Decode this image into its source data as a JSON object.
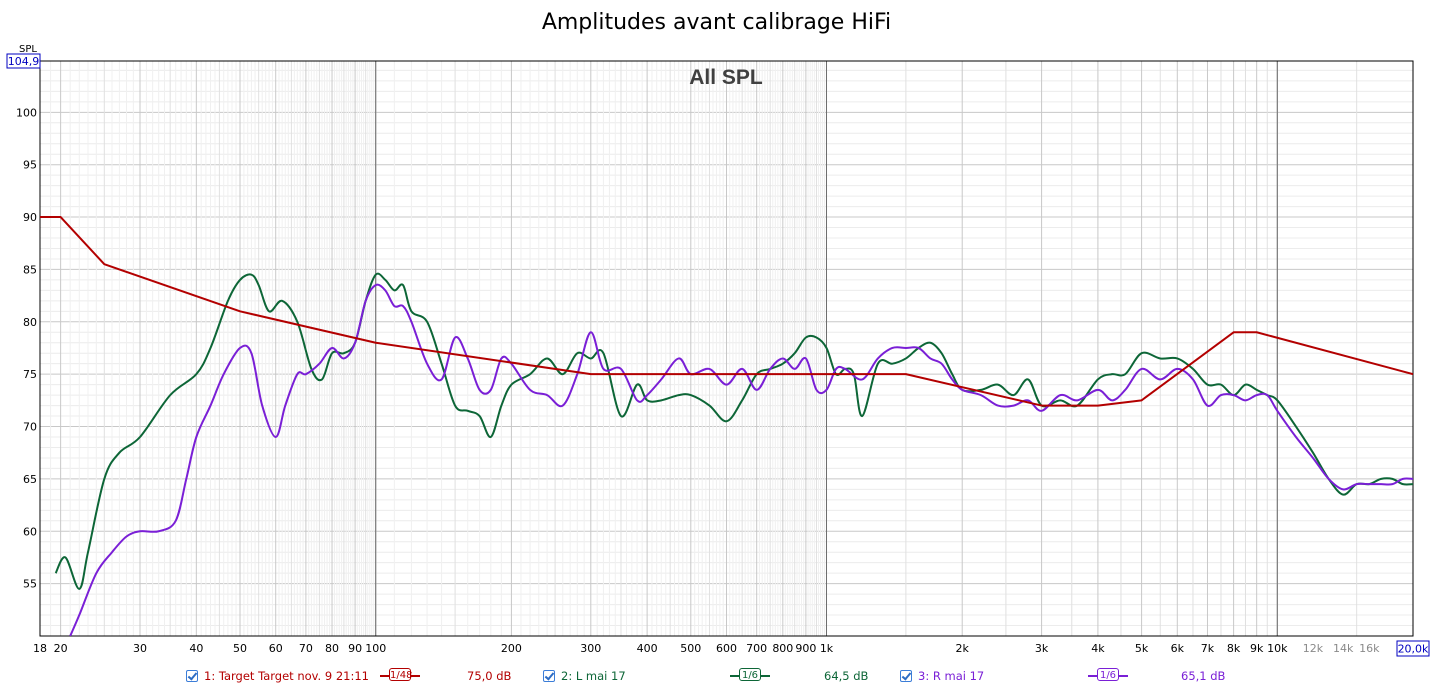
{
  "title": "Amplitudes avant calibrage HiFi",
  "chart_data": {
    "type": "line",
    "title": "Amplitudes avant calibrage HiFi",
    "inner_title": "All SPL",
    "ylabel": "SPL",
    "ylim": [
      50,
      104.9
    ],
    "xlim": [
      18,
      20000
    ],
    "x_scale": "log",
    "y_top_label": "104,9",
    "x_right_label": "20,0k",
    "y_ticks": [
      {
        "value": 55,
        "label": "55"
      },
      {
        "value": 60,
        "label": "60"
      },
      {
        "value": 65,
        "label": "65"
      },
      {
        "value": 70,
        "label": "70"
      },
      {
        "value": 75,
        "label": "75"
      },
      {
        "value": 80,
        "label": "80"
      },
      {
        "value": 85,
        "label": "85"
      },
      {
        "value": 90,
        "label": "90"
      },
      {
        "value": 95,
        "label": "95"
      },
      {
        "value": 100,
        "label": "100"
      }
    ],
    "x_ticks": [
      {
        "value": 18,
        "label": "18",
        "minor": false
      },
      {
        "value": 20,
        "label": "20",
        "minor": false
      },
      {
        "value": 30,
        "label": "30",
        "minor": false
      },
      {
        "value": 40,
        "label": "40",
        "minor": false
      },
      {
        "value": 50,
        "label": "50",
        "minor": false
      },
      {
        "value": 60,
        "label": "60",
        "minor": false
      },
      {
        "value": 70,
        "label": "70",
        "minor": false
      },
      {
        "value": 80,
        "label": "80",
        "minor": false
      },
      {
        "value": 90,
        "label": "90",
        "minor": false
      },
      {
        "value": 100,
        "label": "100",
        "minor": false
      },
      {
        "value": 200,
        "label": "200",
        "minor": false
      },
      {
        "value": 300,
        "label": "300",
        "minor": false
      },
      {
        "value": 400,
        "label": "400",
        "minor": false
      },
      {
        "value": 500,
        "label": "500",
        "minor": false
      },
      {
        "value": 600,
        "label": "600",
        "minor": false
      },
      {
        "value": 700,
        "label": "700",
        "minor": false
      },
      {
        "value": 800,
        "label": "800",
        "minor": false
      },
      {
        "value": 900,
        "label": "900",
        "minor": false
      },
      {
        "value": 1000,
        "label": "1k",
        "minor": false
      },
      {
        "value": 2000,
        "label": "2k",
        "minor": false
      },
      {
        "value": 3000,
        "label": "3k",
        "minor": false
      },
      {
        "value": 4000,
        "label": "4k",
        "minor": false
      },
      {
        "value": 5000,
        "label": "5k",
        "minor": false
      },
      {
        "value": 6000,
        "label": "6k",
        "minor": false
      },
      {
        "value": 7000,
        "label": "7k",
        "minor": false
      },
      {
        "value": 8000,
        "label": "8k",
        "minor": false
      },
      {
        "value": 9000,
        "label": "9k",
        "minor": false
      },
      {
        "value": 10000,
        "label": "10k",
        "minor": false
      },
      {
        "value": 12000,
        "label": "12k",
        "minor": true
      },
      {
        "value": 14000,
        "label": "14k",
        "minor": true
      },
      {
        "value": 16000,
        "label": "16k",
        "minor": true
      }
    ],
    "grid": true,
    "legend_position": "bottom",
    "series": [
      {
        "name": "1: Target Target nov. 9 21:11",
        "smoothing": "1/48",
        "level": "75,0 dB",
        "color": "#b30000",
        "x": [
          18,
          20,
          25,
          50,
          100,
          300,
          1500,
          3000,
          4000,
          5000,
          8000,
          9000,
          20000
        ],
        "y": [
          90,
          90,
          85.5,
          81,
          78,
          75,
          75,
          72,
          72,
          72.5,
          79,
          79,
          75
        ]
      },
      {
        "name": "2: L mai 17",
        "smoothing": "1/6",
        "level": "64,5 dB",
        "color": "#0d6637",
        "x": [
          19.5,
          20.5,
          22,
          23,
          25,
          27,
          30,
          35,
          40,
          43,
          47,
          50,
          53,
          55,
          58,
          62,
          67,
          72,
          76,
          80,
          85,
          90,
          95,
          100,
          105,
          110,
          115,
          120,
          130,
          140,
          150,
          160,
          170,
          180,
          190,
          200,
          220,
          240,
          260,
          280,
          300,
          320,
          350,
          380,
          400,
          430,
          470,
          500,
          550,
          600,
          650,
          700,
          750,
          800,
          850,
          900,
          950,
          1000,
          1050,
          1100,
          1150,
          1200,
          1300,
          1400,
          1500,
          1600,
          1700,
          1800,
          1900,
          2000,
          2200,
          2400,
          2600,
          2800,
          3000,
          3300,
          3600,
          4000,
          4300,
          4600,
          5000,
          5500,
          6000,
          6500,
          7000,
          7500,
          8000,
          8500,
          9000,
          9500,
          10000,
          11000,
          12000,
          13000,
          14000,
          15000,
          16000,
          17000,
          18000,
          19000,
          20000
        ],
        "y": [
          56,
          57.5,
          54.5,
          58,
          65,
          67.5,
          69,
          73,
          75,
          77.5,
          82,
          84,
          84.5,
          83.5,
          81,
          82,
          80,
          75.5,
          74.5,
          77,
          77,
          78,
          82,
          84.5,
          84,
          83,
          83.5,
          81,
          80,
          76,
          72,
          71.5,
          71,
          69,
          72,
          74,
          75,
          76.5,
          75,
          77,
          76.5,
          77,
          71,
          74,
          72.5,
          72.5,
          73,
          73,
          72,
          70.5,
          72.5,
          75,
          75.5,
          76,
          77,
          78.5,
          78.5,
          77.5,
          75,
          75.5,
          75,
          71,
          76,
          76,
          76.5,
          77.5,
          78,
          77,
          75,
          73.5,
          73.5,
          74,
          73,
          74.5,
          72,
          72.5,
          72,
          74.5,
          75,
          75,
          77,
          76.5,
          76.5,
          75.5,
          74,
          74,
          73,
          74,
          73.5,
          73,
          72.5,
          70,
          67.5,
          65,
          63.5,
          64.5,
          64.5,
          65,
          65,
          64.5,
          64.5
        ]
      },
      {
        "name": "3: R mai 17",
        "smoothing": "1/6",
        "level": "65,1 dB",
        "color": "#7a1fd6",
        "x": [
          21,
          22,
          24,
          26,
          28,
          30,
          33,
          36,
          38,
          40,
          43,
          46,
          50,
          53,
          56,
          60,
          63,
          67,
          70,
          75,
          80,
          85,
          90,
          95,
          100,
          105,
          110,
          115,
          120,
          130,
          140,
          150,
          160,
          170,
          180,
          190,
          200,
          220,
          240,
          260,
          280,
          300,
          320,
          350,
          380,
          400,
          430,
          470,
          500,
          550,
          600,
          650,
          700,
          750,
          800,
          850,
          900,
          950,
          1000,
          1050,
          1100,
          1200,
          1300,
          1400,
          1500,
          1600,
          1700,
          1800,
          1900,
          2000,
          2200,
          2400,
          2600,
          2800,
          3000,
          3300,
          3600,
          4000,
          4300,
          4600,
          5000,
          5500,
          6000,
          6500,
          7000,
          7500,
          8000,
          8500,
          9000,
          9500,
          10000,
          11000,
          12000,
          13000,
          14000,
          15000,
          16000,
          17000,
          18000,
          19000,
          20000
        ],
        "y": [
          50,
          52,
          56,
          58,
          59.5,
          60,
          60,
          61,
          65,
          69,
          72,
          75,
          77.5,
          77,
          72,
          69,
          72,
          75,
          75,
          76,
          77.5,
          76.5,
          78,
          82,
          83.5,
          83,
          81.5,
          81.5,
          80,
          76,
          74.5,
          78.5,
          76.5,
          73.5,
          73.5,
          76.5,
          76,
          73.5,
          73,
          72,
          75,
          79,
          75.5,
          75.5,
          72.5,
          73,
          74.5,
          76.5,
          75,
          75.5,
          74,
          75.5,
          73.5,
          75.5,
          76.5,
          75.5,
          76.5,
          73.5,
          73.5,
          75.5,
          75.5,
          74.5,
          76.5,
          77.5,
          77.5,
          77.5,
          76.5,
          76,
          74.5,
          73.5,
          73,
          72,
          72,
          72.5,
          71.5,
          73,
          72.5,
          73.5,
          72.5,
          73.5,
          75.5,
          74.5,
          75.5,
          74.5,
          72,
          73,
          73,
          72.5,
          73,
          73,
          71.5,
          69,
          67,
          65,
          64,
          64.5,
          64.5,
          64.5,
          64.5,
          65,
          65
        ]
      }
    ]
  }
}
